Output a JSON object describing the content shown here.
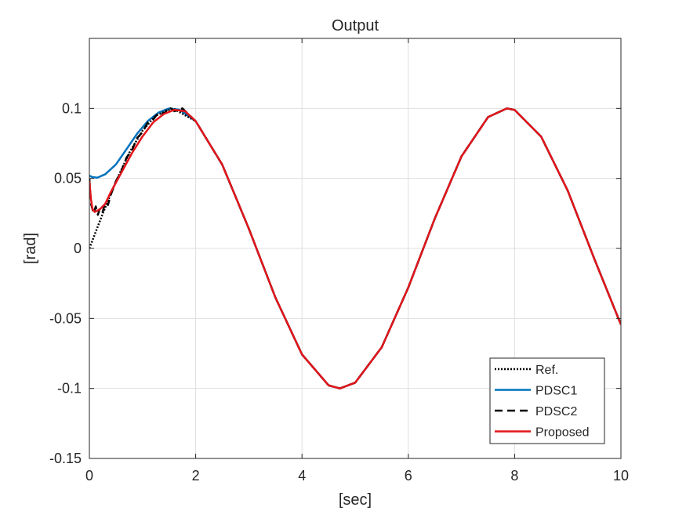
{
  "chart_data": {
    "type": "line",
    "title": "Output",
    "xlabel": "[sec]",
    "ylabel": "[rad]",
    "xlim": [
      0,
      10
    ],
    "ylim": [
      -0.15,
      0.15
    ],
    "xticks": [
      0,
      2,
      4,
      6,
      8,
      10
    ],
    "xtick_labels": [
      "0",
      "2",
      "4",
      "6",
      "8",
      "10"
    ],
    "yticks": [
      -0.15,
      -0.1,
      -0.05,
      0,
      0.05,
      0.1
    ],
    "ytick_labels": [
      "-0.15",
      "-0.1",
      "-0.05",
      "0",
      "0.05",
      "0.1"
    ],
    "grid": true,
    "legend_position": "bottom-right",
    "series": [
      {
        "name": "Ref.",
        "color": "#000000",
        "style": "dotted",
        "x": [
          0,
          0.25,
          0.5,
          0.75,
          1.0,
          1.25,
          1.5708,
          2.0,
          2.5,
          3.0,
          3.5,
          4.0,
          4.5,
          4.7124,
          5.0,
          5.5,
          6.0,
          6.5,
          7.0,
          7.5,
          7.854,
          8.0,
          8.5,
          9.0,
          9.5,
          10.0
        ],
        "y": [
          0,
          0.0247,
          0.0479,
          0.0682,
          0.0841,
          0.0949,
          0.1,
          0.0909,
          0.0598,
          0.0141,
          -0.0351,
          -0.0757,
          -0.0978,
          -0.1,
          -0.0959,
          -0.0706,
          -0.0279,
          0.0215,
          0.0657,
          0.0938,
          0.1,
          0.0989,
          0.0798,
          0.0412,
          -0.0075,
          -0.0544
        ]
      },
      {
        "name": "PDSC1",
        "color": "#0072BD",
        "style": "solid",
        "x": [
          0,
          0.05,
          0.15,
          0.3,
          0.5,
          0.7,
          0.9,
          1.1,
          1.3,
          1.5,
          1.7,
          2.0,
          2.5,
          3.0,
          3.5,
          4.0,
          4.5,
          4.7124,
          5.0,
          5.5,
          6.0,
          6.5,
          7.0,
          7.5,
          7.854,
          8.0,
          8.5,
          9.0,
          9.5,
          10.0
        ],
        "y": [
          0.052,
          0.051,
          0.0505,
          0.053,
          0.06,
          0.071,
          0.082,
          0.091,
          0.097,
          0.1,
          0.099,
          0.0909,
          0.0598,
          0.0141,
          -0.0351,
          -0.0757,
          -0.0978,
          -0.1,
          -0.0959,
          -0.0706,
          -0.0279,
          0.0215,
          0.0657,
          0.0938,
          0.1,
          0.0989,
          0.0798,
          0.0412,
          -0.0075,
          -0.0544
        ]
      },
      {
        "name": "PDSC2",
        "color": "#000000",
        "style": "dashed",
        "x": [
          0,
          0.03,
          0.08,
          0.12,
          0.16,
          0.2,
          0.25,
          0.3,
          0.35,
          0.4,
          0.5,
          0.6,
          0.7,
          0.8,
          0.9,
          1.0,
          1.1,
          1.2,
          1.3,
          1.4,
          1.5,
          1.6,
          1.75,
          2.0,
          2.5,
          3.0,
          3.5,
          4.0,
          4.5,
          4.7124,
          5.0,
          5.5,
          6.0,
          6.5,
          7.0,
          7.5,
          7.854,
          8.0,
          8.5,
          9.0,
          9.5,
          10.0
        ],
        "y": [
          0.05,
          0.032,
          0.025,
          0.03,
          0.024,
          0.029,
          0.026,
          0.033,
          0.031,
          0.038,
          0.048,
          0.055,
          0.065,
          0.07,
          0.079,
          0.083,
          0.09,
          0.092,
          0.097,
          0.096,
          0.101,
          0.098,
          0.1,
          0.0909,
          0.0598,
          0.0141,
          -0.0351,
          -0.0757,
          -0.0978,
          -0.1,
          -0.0959,
          -0.0706,
          -0.0279,
          0.0215,
          0.0657,
          0.0938,
          0.1,
          0.0989,
          0.0798,
          0.0412,
          -0.0075,
          -0.0544
        ]
      },
      {
        "name": "Proposed",
        "color": "#E3151A",
        "style": "solid",
        "x": [
          0,
          0.03,
          0.06,
          0.1,
          0.15,
          0.2,
          0.3,
          0.4,
          0.5,
          0.6,
          0.8,
          1.0,
          1.2,
          1.4,
          1.6,
          1.8,
          2.0,
          2.5,
          3.0,
          3.5,
          4.0,
          4.5,
          4.7124,
          5.0,
          5.5,
          6.0,
          6.5,
          7.0,
          7.5,
          7.854,
          8.0,
          8.5,
          9.0,
          9.5,
          10.0
        ],
        "y": [
          0.048,
          0.035,
          0.028,
          0.026,
          0.027,
          0.028,
          0.032,
          0.04,
          0.047,
          0.054,
          0.068,
          0.08,
          0.09,
          0.096,
          0.099,
          0.098,
          0.0909,
          0.0598,
          0.0141,
          -0.0351,
          -0.0757,
          -0.0978,
          -0.1,
          -0.0959,
          -0.0706,
          -0.0279,
          0.0215,
          0.0657,
          0.0938,
          0.1,
          0.0989,
          0.0798,
          0.0412,
          -0.0075,
          -0.0544
        ]
      }
    ]
  }
}
